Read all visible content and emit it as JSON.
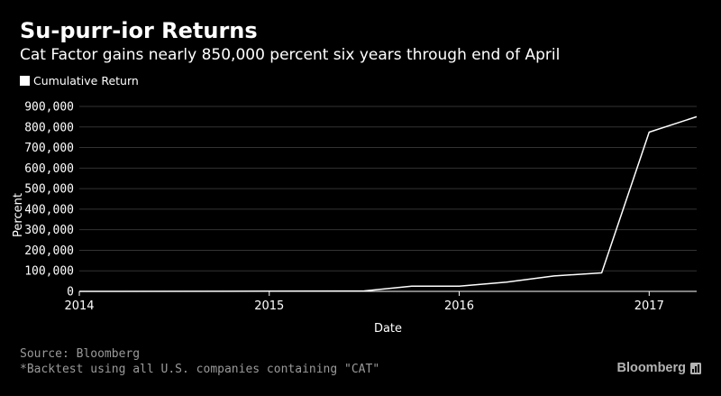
{
  "header": {
    "title": "Su-purr-ior Returns",
    "subtitle": "Cat Factor gains nearly 850,000 percent six years through end of April"
  },
  "legend": {
    "label": "Cumulative Return"
  },
  "footer": {
    "source": "Source: Bloomberg",
    "note": "*Backtest using all U.S. companies containing \"CAT\"",
    "brand": "Bloomberg"
  },
  "colors": {
    "background": "#000000",
    "line": "#ffffff",
    "grid": "#333333",
    "footer_text": "#9a9a9a"
  },
  "chart_data": {
    "type": "line",
    "title": "Su-purr-ior Returns",
    "subtitle": "Cat Factor gains nearly 850,000 percent six years through end of April",
    "xlabel": "Date",
    "ylabel": "Percent",
    "x_ticks": [
      "2014",
      "2015",
      "2016",
      "2017"
    ],
    "x_tick_values": [
      2014.0,
      2015.0,
      2016.0,
      2017.0
    ],
    "xlim": [
      2014.0,
      2017.25
    ],
    "y_ticks": [
      "0",
      "100,000",
      "200,000",
      "300,000",
      "400,000",
      "500,000",
      "600,000",
      "700,000",
      "800,000",
      "900,000"
    ],
    "y_tick_values": [
      0,
      100000,
      200000,
      300000,
      400000,
      500000,
      600000,
      700000,
      800000,
      900000
    ],
    "ylim": [
      0,
      900000
    ],
    "grid": true,
    "legend_position": "top-left",
    "series": [
      {
        "name": "Cumulative Return",
        "x": [
          2014.0,
          2015.0,
          2015.5,
          2015.75,
          2016.0,
          2016.25,
          2016.5,
          2016.75,
          2017.0,
          2017.25
        ],
        "y": [
          0,
          1000,
          2000,
          25000,
          25000,
          45000,
          75000,
          90000,
          775000,
          850000
        ]
      }
    ]
  }
}
